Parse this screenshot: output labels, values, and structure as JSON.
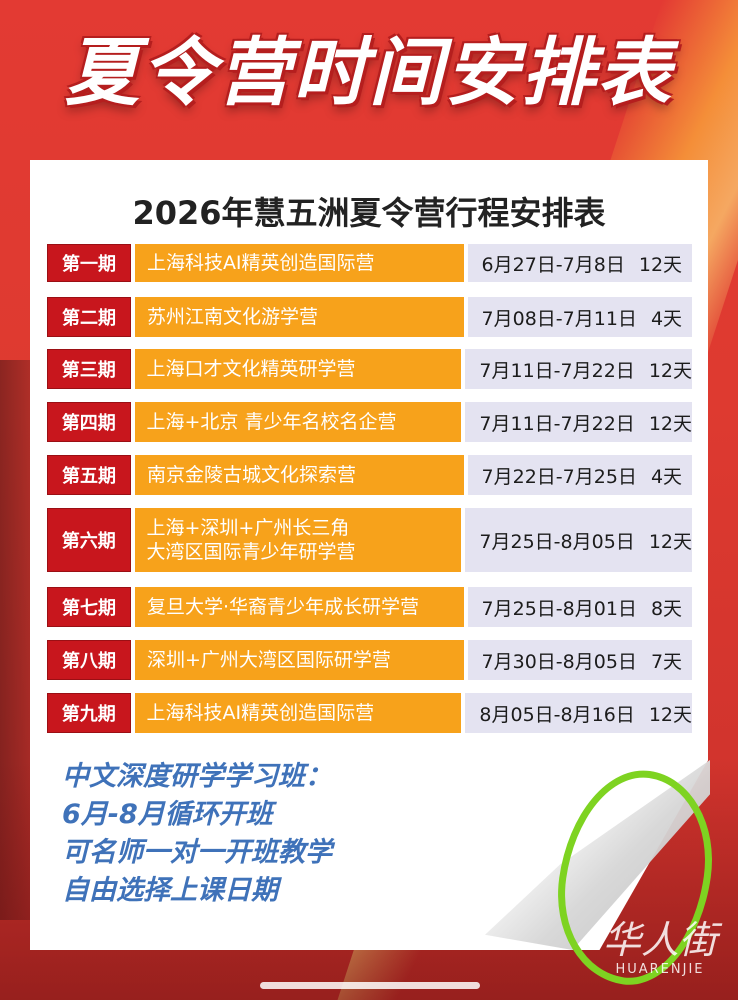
{
  "header": {
    "title": "夏令营时间安排表"
  },
  "schedule": {
    "subtitle": "2026年慧五洲夏令营行程安排表",
    "rows": [
      {
        "period": "第一期",
        "name": "上海科技AI精英创造国际营",
        "date": "6月27日-7月8日",
        "days": "12天"
      },
      {
        "period": "第二期",
        "name": "苏州江南文化游学营",
        "date": "7月08日-7月11日",
        "days": "4天"
      },
      {
        "period": "第三期",
        "name": "上海口才文化精英研学营",
        "date": "7月11日-7月22日",
        "days": "12天"
      },
      {
        "period": "第四期",
        "name": "上海+北京 青少年名校名企营",
        "date": "7月11日-7月22日",
        "days": "12天"
      },
      {
        "period": "第五期",
        "name": "南京金陵古城文化探索营",
        "date": "7月22日-7月25日",
        "days": "4天"
      },
      {
        "period": "第六期",
        "name": "上海+深圳+广州长三角",
        "name2": "大湾区国际青少年研学营",
        "date": "7月25日-8月05日",
        "days": "12天"
      },
      {
        "period": "第七期",
        "name": "复旦大学·华裔青少年成长研学营",
        "date": "7月25日-8月01日",
        "days": "8天"
      },
      {
        "period": "第八期",
        "name": "深圳+广州大湾区国际研学营",
        "date": "7月30日-8月05日",
        "days": "7天"
      },
      {
        "period": "第九期",
        "name": "上海科技AI精英创造国际营",
        "date": "8月05日-8月16日",
        "days": "12天"
      }
    ]
  },
  "notes": {
    "line1": "中文深度研学学习班：",
    "line2": "6月-8月循环开班",
    "line3": "可名师一对一开班教学",
    "line4": "自由选择上课日期"
  },
  "watermark": {
    "cn": "华人街",
    "en": "HUARENJIE"
  },
  "colors": {
    "background": "#d8322e",
    "period_cell": "#c8161d",
    "name_cell": "#f7a21b",
    "date_cell": "#e4e3f1",
    "notes_text": "#3f72b9",
    "annotation_circle": "#7ed321"
  }
}
